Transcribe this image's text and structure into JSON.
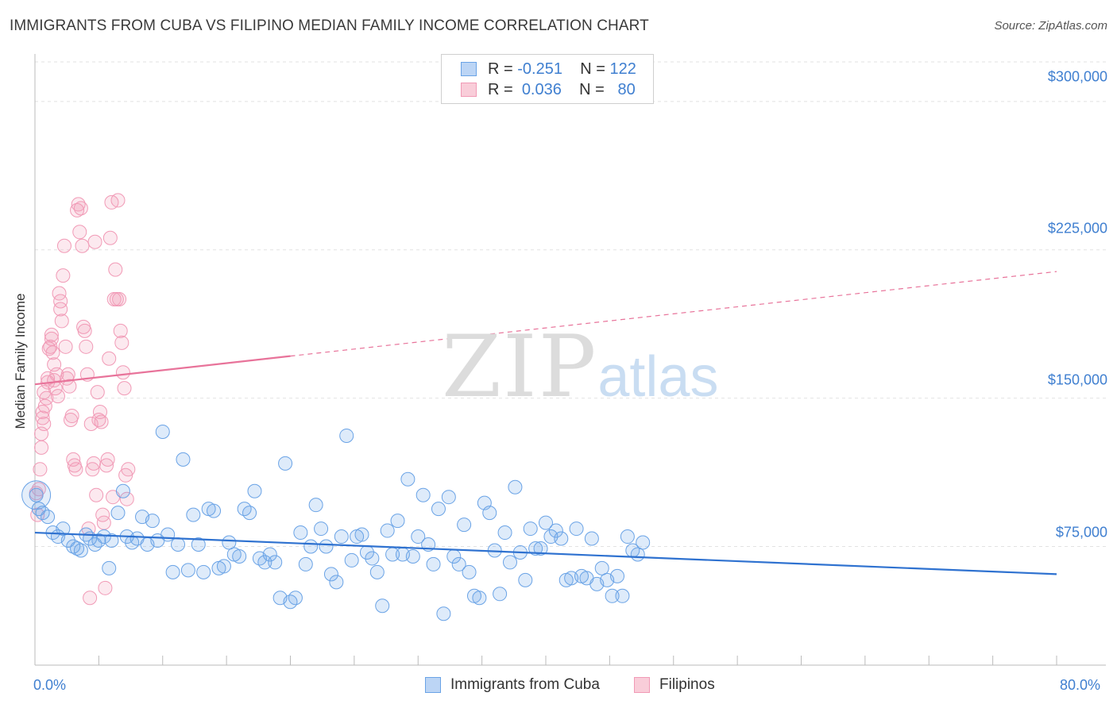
{
  "header": {
    "title": "IMMIGRANTS FROM CUBA VS FILIPINO MEDIAN FAMILY INCOME CORRELATION CHART",
    "source": "Source: ZipAtlas.com"
  },
  "legend": {
    "row1": {
      "r_label": "R =",
      "r_value": "-0.251",
      "n_label": "N =",
      "n_value": "122"
    },
    "row2": {
      "r_label": "R =",
      "r_value": "0.036",
      "n_label": "N =",
      "n_value": "80"
    }
  },
  "watermark": {
    "zip": "ZIP",
    "atlas": "atlas"
  },
  "chart_data": {
    "type": "scatter",
    "title": "IMMIGRANTS FROM CUBA VS FILIPINO MEDIAN FAMILY INCOME CORRELATION CHART",
    "ylabel": "Median Family Income",
    "xlim": [
      0,
      80
    ],
    "ylim": [
      15000,
      320000
    ],
    "x_tick_labels": [
      "0.0%",
      "80.0%"
    ],
    "y_ticks": [
      75000,
      150000,
      225000,
      300000
    ],
    "y_tick_labels": [
      "$75,000",
      "$150,000",
      "$225,000",
      "$300,000"
    ],
    "grid": true,
    "legend_position": "top-center",
    "colors": {
      "cuba": "#6aa3e6",
      "cuba_line": "#2f72d0",
      "filipinos": "#f19ab6",
      "filipinos_line": "#e8739a"
    },
    "series": [
      {
        "name": "Immigrants from Cuba",
        "trend": {
          "x": [
            0,
            80
          ],
          "y": [
            82000,
            61000
          ],
          "dashed_from": null
        },
        "points": [
          [
            0.1,
            101000
          ],
          [
            0.3,
            94000
          ],
          [
            0.6,
            92000
          ],
          [
            1.0,
            90000
          ],
          [
            1.4,
            82000
          ],
          [
            1.8,
            80000
          ],
          [
            2.2,
            84000
          ],
          [
            2.6,
            78000
          ],
          [
            3.0,
            75000
          ],
          [
            3.3,
            74000
          ],
          [
            3.6,
            73000
          ],
          [
            4.0,
            81000
          ],
          [
            4.3,
            79000
          ],
          [
            4.7,
            76000
          ],
          [
            5.0,
            78000
          ],
          [
            5.4,
            80000
          ],
          [
            5.8,
            64000
          ],
          [
            6.0,
            78000
          ],
          [
            6.5,
            92000
          ],
          [
            6.9,
            103000
          ],
          [
            7.2,
            80000
          ],
          [
            7.6,
            77000
          ],
          [
            8.0,
            79000
          ],
          [
            8.4,
            90000
          ],
          [
            8.8,
            76000
          ],
          [
            9.2,
            88000
          ],
          [
            9.6,
            78000
          ],
          [
            10.0,
            133000
          ],
          [
            10.4,
            81000
          ],
          [
            10.8,
            62000
          ],
          [
            11.2,
            76000
          ],
          [
            11.6,
            119000
          ],
          [
            12.0,
            63000
          ],
          [
            12.4,
            91000
          ],
          [
            12.8,
            76000
          ],
          [
            13.2,
            62000
          ],
          [
            13.6,
            94000
          ],
          [
            14.0,
            93000
          ],
          [
            14.4,
            64000
          ],
          [
            14.8,
            65000
          ],
          [
            15.2,
            77000
          ],
          [
            15.6,
            71000
          ],
          [
            16.0,
            70000
          ],
          [
            16.4,
            94000
          ],
          [
            16.8,
            92000
          ],
          [
            17.2,
            103000
          ],
          [
            17.6,
            69000
          ],
          [
            18.0,
            67000
          ],
          [
            18.4,
            71000
          ],
          [
            18.8,
            67000
          ],
          [
            19.2,
            49000
          ],
          [
            19.6,
            117000
          ],
          [
            20.0,
            47000
          ],
          [
            20.4,
            49000
          ],
          [
            20.8,
            82000
          ],
          [
            21.2,
            66000
          ],
          [
            21.6,
            75000
          ],
          [
            22.0,
            96000
          ],
          [
            22.4,
            84000
          ],
          [
            22.8,
            75000
          ],
          [
            23.2,
            61000
          ],
          [
            23.6,
            57000
          ],
          [
            24.0,
            80000
          ],
          [
            24.4,
            131000
          ],
          [
            24.8,
            68000
          ],
          [
            25.2,
            80000
          ],
          [
            25.6,
            81000
          ],
          [
            26.0,
            72000
          ],
          [
            26.4,
            69000
          ],
          [
            26.8,
            62000
          ],
          [
            27.2,
            45000
          ],
          [
            27.6,
            83000
          ],
          [
            28.0,
            71000
          ],
          [
            28.4,
            88000
          ],
          [
            28.8,
            71000
          ],
          [
            29.2,
            109000
          ],
          [
            29.6,
            70000
          ],
          [
            30.0,
            80000
          ],
          [
            30.4,
            101000
          ],
          [
            30.8,
            76000
          ],
          [
            31.2,
            66000
          ],
          [
            31.6,
            94000
          ],
          [
            32.0,
            41000
          ],
          [
            32.4,
            100000
          ],
          [
            32.8,
            70000
          ],
          [
            33.2,
            66000
          ],
          [
            33.6,
            86000
          ],
          [
            34.0,
            62000
          ],
          [
            34.4,
            50000
          ],
          [
            34.8,
            49000
          ],
          [
            35.2,
            97000
          ],
          [
            35.6,
            92000
          ],
          [
            36.0,
            73000
          ],
          [
            36.4,
            51000
          ],
          [
            36.8,
            82000
          ],
          [
            37.2,
            67000
          ],
          [
            37.6,
            105000
          ],
          [
            38.0,
            72000
          ],
          [
            38.4,
            58000
          ],
          [
            38.8,
            84000
          ],
          [
            39.2,
            74000
          ],
          [
            39.6,
            74000
          ],
          [
            40.0,
            87000
          ],
          [
            40.4,
            80000
          ],
          [
            40.8,
            83000
          ],
          [
            41.2,
            79000
          ],
          [
            41.6,
            58000
          ],
          [
            42.0,
            59000
          ],
          [
            42.4,
            84000
          ],
          [
            42.8,
            60000
          ],
          [
            43.2,
            59000
          ],
          [
            43.6,
            79000
          ],
          [
            44.0,
            56000
          ],
          [
            44.4,
            64000
          ],
          [
            44.8,
            58000
          ],
          [
            45.2,
            50000
          ],
          [
            45.6,
            60000
          ],
          [
            46.0,
            50000
          ],
          [
            46.4,
            80000
          ],
          [
            46.8,
            73000
          ],
          [
            47.2,
            71000
          ],
          [
            47.6,
            77000
          ]
        ]
      },
      {
        "name": "Filipinos",
        "trend": {
          "x": [
            0,
            80
          ],
          "y": [
            157000,
            214000
          ],
          "solid_until": 20
        },
        "points": [
          [
            0.1,
            102000
          ],
          [
            0.2,
            91000
          ],
          [
            0.3,
            104000
          ],
          [
            0.4,
            114000
          ],
          [
            0.5,
            125000
          ],
          [
            0.5,
            132000
          ],
          [
            0.6,
            140000
          ],
          [
            0.6,
            143000
          ],
          [
            0.7,
            137000
          ],
          [
            0.7,
            153000
          ],
          [
            0.8,
            146000
          ],
          [
            0.9,
            150000
          ],
          [
            1.0,
            160000
          ],
          [
            1.0,
            158000
          ],
          [
            1.1,
            175000
          ],
          [
            1.2,
            176000
          ],
          [
            1.3,
            180000
          ],
          [
            1.3,
            182000
          ],
          [
            1.4,
            173000
          ],
          [
            1.5,
            167000
          ],
          [
            1.5,
            159000
          ],
          [
            1.6,
            155000
          ],
          [
            1.7,
            162000
          ],
          [
            1.8,
            151000
          ],
          [
            1.9,
            203000
          ],
          [
            2.0,
            195000
          ],
          [
            2.0,
            199000
          ],
          [
            2.1,
            189000
          ],
          [
            2.2,
            212000
          ],
          [
            2.3,
            227000
          ],
          [
            2.4,
            176000
          ],
          [
            2.5,
            160000
          ],
          [
            2.6,
            162000
          ],
          [
            2.7,
            156000
          ],
          [
            2.8,
            139000
          ],
          [
            2.9,
            141000
          ],
          [
            3.0,
            119000
          ],
          [
            3.1,
            116000
          ],
          [
            3.2,
            114000
          ],
          [
            3.3,
            245000
          ],
          [
            3.4,
            248000
          ],
          [
            3.5,
            234000
          ],
          [
            3.6,
            246000
          ],
          [
            3.7,
            227000
          ],
          [
            3.8,
            186000
          ],
          [
            3.9,
            184000
          ],
          [
            4.0,
            176000
          ],
          [
            4.1,
            162000
          ],
          [
            4.2,
            84000
          ],
          [
            4.3,
            49000
          ],
          [
            4.4,
            137000
          ],
          [
            4.5,
            114000
          ],
          [
            4.6,
            117000
          ],
          [
            4.7,
            229000
          ],
          [
            4.8,
            101000
          ],
          [
            4.9,
            153000
          ],
          [
            5.0,
            139000
          ],
          [
            5.1,
            143000
          ],
          [
            5.2,
            138000
          ],
          [
            5.3,
            91000
          ],
          [
            5.4,
            87000
          ],
          [
            5.5,
            54000
          ],
          [
            5.6,
            116000
          ],
          [
            5.7,
            119000
          ],
          [
            5.8,
            170000
          ],
          [
            5.9,
            231000
          ],
          [
            6.0,
            249000
          ],
          [
            6.1,
            100000
          ],
          [
            6.2,
            200000
          ],
          [
            6.3,
            215000
          ],
          [
            6.4,
            200000
          ],
          [
            6.5,
            250000
          ],
          [
            6.6,
            200000
          ],
          [
            6.7,
            184000
          ],
          [
            6.8,
            178000
          ],
          [
            6.9,
            163000
          ],
          [
            7.0,
            155000
          ],
          [
            7.1,
            111000
          ],
          [
            7.2,
            99000
          ],
          [
            7.3,
            114000
          ]
        ]
      }
    ]
  },
  "bottom_legend": {
    "item1": "Immigrants from Cuba",
    "item2": "Filipinos"
  }
}
